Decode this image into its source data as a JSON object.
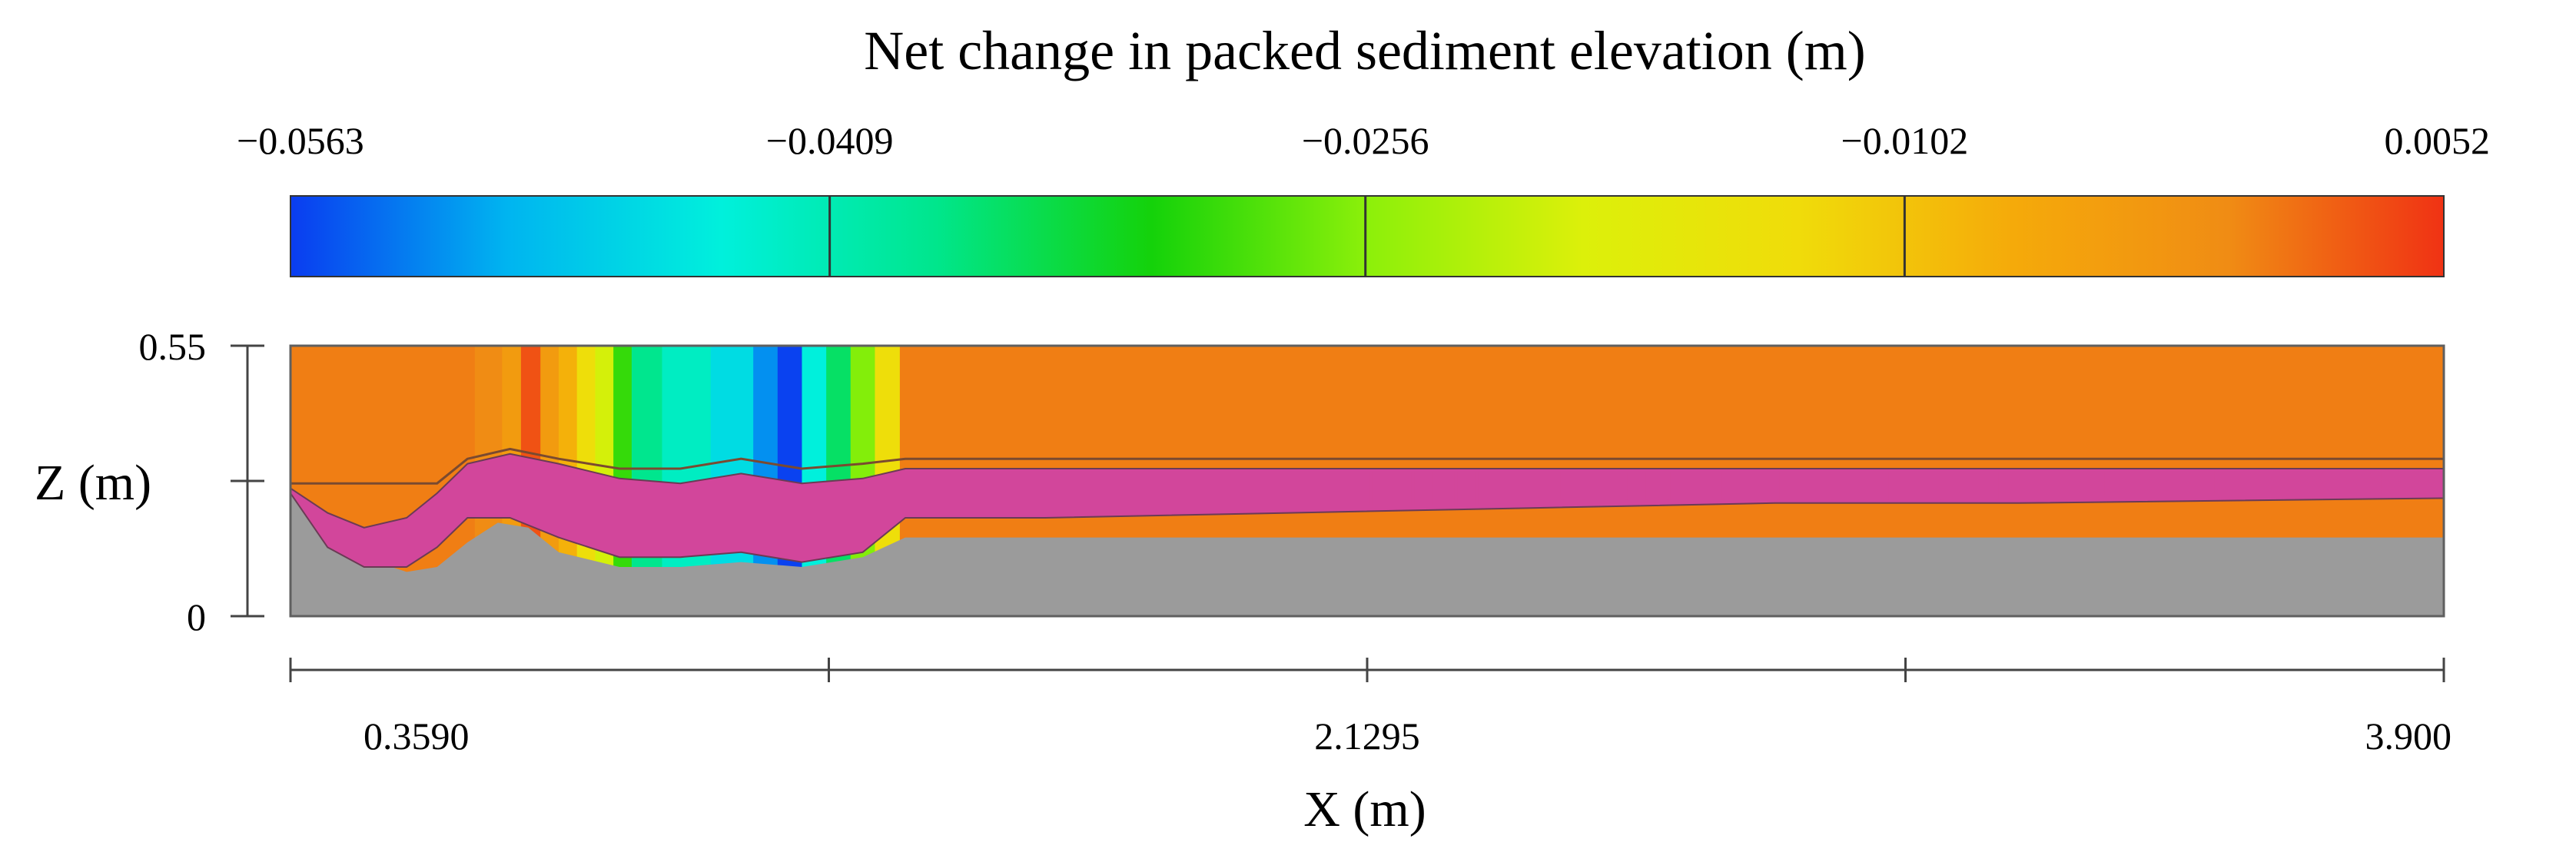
{
  "chart_data": {
    "type": "heatmap",
    "title": "Net change in packed sediment elevation (m)",
    "colorbar": {
      "tick_labels": [
        "−0.0563",
        "−0.0409",
        "−0.0256",
        "−0.0102",
        "0.0052"
      ],
      "ticks": [
        -0.0563,
        -0.0409,
        -0.0256,
        -0.0102,
        0.0052
      ],
      "range": [
        -0.0563,
        0.0052
      ],
      "colormap": [
        "#0a3cf0",
        "#00b4f0",
        "#00f0dc",
        "#00e68c",
        "#14d20a",
        "#8cf00a",
        "#dcf00a",
        "#f0dc0a",
        "#f5aa0a",
        "#f08c14",
        "#f03214"
      ]
    },
    "x_axis": {
      "label": "X (m)",
      "tick_labels": [
        "0.3590",
        "2.1295",
        "3.900"
      ],
      "ticks": [
        0.359,
        2.1295,
        3.9
      ],
      "minor_ticks": [
        1.24425,
        3.01475
      ],
      "range": [
        0.359,
        3.9
      ]
    },
    "y_axis": {
      "label": "Z (m)",
      "tick_labels": [
        "0.55",
        "0"
      ],
      "ticks": [
        0.55,
        0
      ],
      "range": [
        0,
        0.55
      ]
    },
    "background_value": 0.0,
    "erosion_stripes": [
      {
        "x_start": 0.662,
        "x_end": 0.707,
        "value": -0.001
      },
      {
        "x_start": 0.707,
        "x_end": 0.738,
        "value": -0.004
      },
      {
        "x_start": 0.738,
        "x_end": 0.77,
        "value": 0.003
      },
      {
        "x_start": 0.77,
        "x_end": 0.8,
        "value": -0.004
      },
      {
        "x_start": 0.8,
        "x_end": 0.83,
        "value": -0.008
      },
      {
        "x_start": 0.83,
        "x_end": 0.86,
        "value": -0.014
      },
      {
        "x_start": 0.86,
        "x_end": 0.89,
        "value": -0.02
      },
      {
        "x_start": 0.89,
        "x_end": 0.92,
        "value": -0.03
      },
      {
        "x_start": 0.92,
        "x_end": 0.97,
        "value": -0.038
      },
      {
        "x_start": 0.97,
        "x_end": 1.05,
        "value": -0.042
      },
      {
        "x_start": 1.05,
        "x_end": 1.12,
        "value": -0.046
      },
      {
        "x_start": 1.12,
        "x_end": 1.16,
        "value": -0.052
      },
      {
        "x_start": 1.16,
        "x_end": 1.2,
        "value": -0.056
      },
      {
        "x_start": 1.2,
        "x_end": 1.24,
        "value": -0.044
      },
      {
        "x_start": 1.24,
        "x_end": 1.28,
        "value": -0.036
      },
      {
        "x_start": 1.28,
        "x_end": 1.32,
        "value": -0.026
      },
      {
        "x_start": 1.32,
        "x_end": 1.36,
        "value": -0.014
      }
    ],
    "bed_profile": {
      "x": [
        0.359,
        0.45,
        0.5,
        0.55,
        0.6,
        0.65,
        0.7,
        0.75,
        0.8,
        0.9,
        1.0,
        1.1,
        1.2,
        1.3,
        1.37,
        3.9
      ],
      "z": [
        0.26,
        0.17,
        0.11,
        0.09,
        0.1,
        0.15,
        0.19,
        0.18,
        0.13,
        0.1,
        0.1,
        0.11,
        0.1,
        0.12,
        0.16,
        0.16
      ]
    },
    "water_surface": {
      "x": [
        0.359,
        0.6,
        0.65,
        0.72,
        0.8,
        0.9,
        1.0,
        1.1,
        1.2,
        1.3,
        1.37,
        3.9
      ],
      "z": [
        0.27,
        0.27,
        0.32,
        0.34,
        0.32,
        0.3,
        0.3,
        0.32,
        0.3,
        0.31,
        0.32,
        0.32
      ]
    },
    "sediment_band": {
      "x": [
        0.359,
        0.42,
        0.48,
        0.55,
        0.6,
        0.65,
        0.72,
        0.8,
        0.9,
        1.0,
        1.1,
        1.2,
        1.3,
        1.37,
        1.6,
        2.0,
        2.4,
        2.8,
        3.2,
        3.9
      ],
      "top": [
        0.26,
        0.21,
        0.18,
        0.2,
        0.25,
        0.31,
        0.33,
        0.31,
        0.28,
        0.27,
        0.29,
        0.27,
        0.28,
        0.3,
        0.3,
        0.3,
        0.3,
        0.3,
        0.3,
        0.3
      ],
      "bottom": [
        0.25,
        0.14,
        0.1,
        0.1,
        0.14,
        0.2,
        0.2,
        0.16,
        0.12,
        0.12,
        0.13,
        0.11,
        0.13,
        0.2,
        0.2,
        0.21,
        0.22,
        0.23,
        0.23,
        0.24
      ]
    },
    "sediment_color": "#d2469b",
    "bed_color": "#9b9b9b",
    "frame_color": "#5f5f5f"
  }
}
